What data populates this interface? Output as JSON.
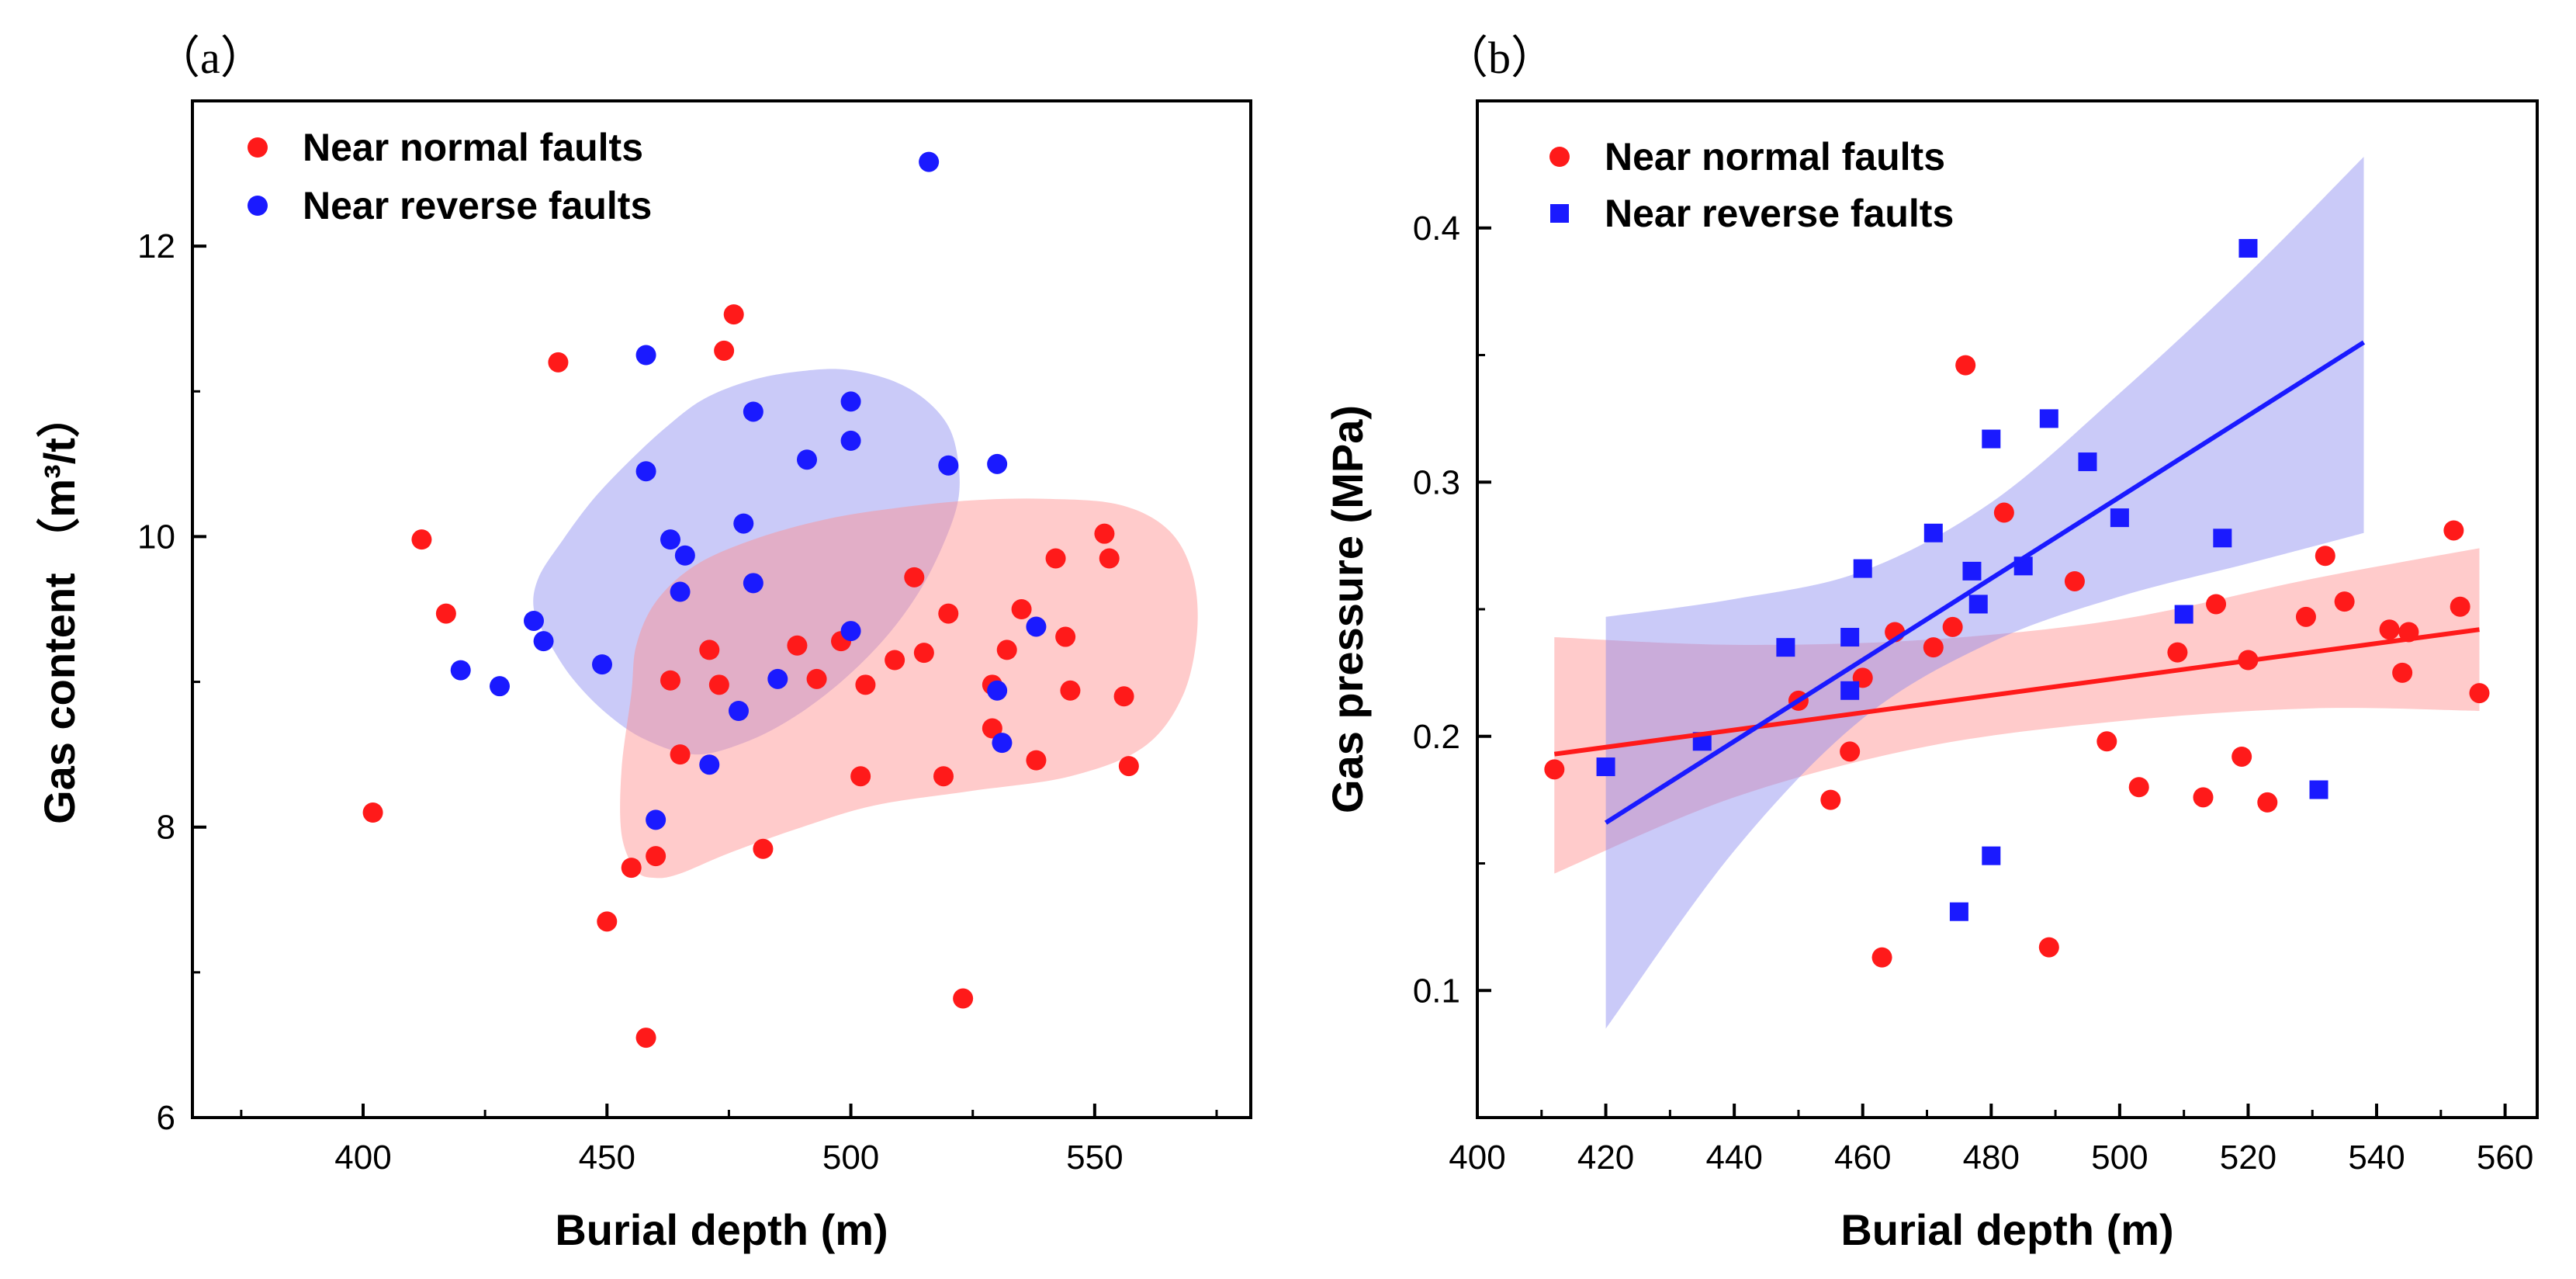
{
  "chart_data": [
    {
      "type": "scatter",
      "panel_label": "（a）",
      "xlabel": "Burial depth (m)",
      "ylabel": "Gas content （m³/t）",
      "xlim": [
        365,
        582
      ],
      "ylim": [
        6,
        13
      ],
      "xticks": [
        400,
        450,
        500,
        550
      ],
      "yticks": [
        6,
        8,
        10,
        12
      ],
      "legend_position": "top-left",
      "series": [
        {
          "name": "Near normal faults",
          "color": "#ff1a1a",
          "marker": "circle",
          "points": [
            [
              402,
              8.1
            ],
            [
              412,
              9.98
            ],
            [
              417,
              9.47
            ],
            [
              440,
              11.2
            ],
            [
              450,
              7.35
            ],
            [
              455,
              7.72
            ],
            [
              458,
              6.55
            ],
            [
              460,
              7.8
            ],
            [
              463,
              9.01
            ],
            [
              465,
              8.5
            ],
            [
              471,
              9.22
            ],
            [
              473,
              8.98
            ],
            [
              474,
              11.28
            ],
            [
              476,
              11.53
            ],
            [
              482,
              7.85
            ],
            [
              489,
              9.25
            ],
            [
              493,
              9.02
            ],
            [
              498,
              9.28
            ],
            [
              502,
              8.35
            ],
            [
              503,
              8.98
            ],
            [
              509,
              9.15
            ],
            [
              513,
              9.72
            ],
            [
              515,
              9.2
            ],
            [
              519,
              8.35
            ],
            [
              520,
              9.47
            ],
            [
              523,
              6.82
            ],
            [
              529,
              8.68
            ],
            [
              529,
              8.98
            ],
            [
              532,
              9.22
            ],
            [
              535,
              9.5
            ],
            [
              538,
              8.46
            ],
            [
              542,
              9.85
            ],
            [
              544,
              9.31
            ],
            [
              545,
              8.94
            ],
            [
              552,
              10.02
            ],
            [
              553,
              9.85
            ],
            [
              556,
              8.9
            ],
            [
              557,
              8.42
            ]
          ]
        },
        {
          "name": "Near reverse faults",
          "color": "#1a1aff",
          "marker": "circle",
          "points": [
            [
              420,
              9.08
            ],
            [
              428,
              8.97
            ],
            [
              435,
              9.42
            ],
            [
              437,
              9.28
            ],
            [
              449,
              9.12
            ],
            [
              458,
              11.25
            ],
            [
              458,
              10.45
            ],
            [
              460,
              8.05
            ],
            [
              463,
              9.98
            ],
            [
              465,
              9.62
            ],
            [
              466,
              9.87
            ],
            [
              471,
              8.43
            ],
            [
              477,
              8.8
            ],
            [
              478,
              10.09
            ],
            [
              480,
              10.86
            ],
            [
              480,
              9.68
            ],
            [
              485,
              9.02
            ],
            [
              491,
              10.53
            ],
            [
              500,
              10.93
            ],
            [
              500,
              10.66
            ],
            [
              500,
              9.35
            ],
            [
              516,
              12.58
            ],
            [
              520,
              10.49
            ],
            [
              530,
              10.5
            ],
            [
              530,
              8.94
            ],
            [
              531,
              8.58
            ],
            [
              538,
              9.38
            ]
          ]
        }
      ],
      "regions": [
        {
          "name": "reverse-fault-envelope",
          "fill": "#8080ee",
          "opacity": 0.42,
          "outline_data": [
            [
              436,
              9.72
            ],
            [
              441,
              9.98
            ],
            [
              447,
              10.25
            ],
            [
              454,
              10.5
            ],
            [
              462,
              10.75
            ],
            [
              470,
              10.95
            ],
            [
              480,
              11.08
            ],
            [
              490,
              11.14
            ],
            [
              499,
              11.15
            ],
            [
              508,
              11.08
            ],
            [
              515,
              10.95
            ],
            [
              520,
              10.76
            ],
            [
              522,
              10.52
            ],
            [
              522,
              10.25
            ],
            [
              519,
              9.95
            ],
            [
              514,
              9.62
            ],
            [
              507,
              9.3
            ],
            [
              498,
              9.0
            ],
            [
              488,
              8.75
            ],
            [
              478,
              8.58
            ],
            [
              468,
              8.5
            ],
            [
              458,
              8.6
            ],
            [
              450,
              8.78
            ],
            [
              443,
              9.02
            ],
            [
              438,
              9.28
            ],
            [
              435,
              9.5
            ]
          ]
        },
        {
          "name": "normal-fault-envelope",
          "fill": "#ff8c8c",
          "opacity": 0.45,
          "outline_data": [
            [
              455,
              8.92
            ],
            [
              453,
              8.4
            ],
            [
              453,
              7.95
            ],
            [
              456,
              7.7
            ],
            [
              460,
              7.65
            ],
            [
              465,
              7.68
            ],
            [
              475,
              7.82
            ],
            [
              490,
              8.0
            ],
            [
              505,
              8.15
            ],
            [
              525,
              8.25
            ],
            [
              545,
              8.35
            ],
            [
              560,
              8.55
            ],
            [
              568,
              8.9
            ],
            [
              571,
              9.35
            ],
            [
              570,
              9.75
            ],
            [
              565,
              10.05
            ],
            [
              555,
              10.22
            ],
            [
              540,
              10.26
            ],
            [
              525,
              10.25
            ],
            [
              510,
              10.2
            ],
            [
              495,
              10.12
            ],
            [
              480,
              9.98
            ],
            [
              468,
              9.8
            ],
            [
              460,
              9.55
            ],
            [
              456,
              9.25
            ]
          ]
        }
      ]
    },
    {
      "type": "scatter",
      "panel_label": "（b）",
      "xlabel": "Burial depth (m)",
      "ylabel": "Gas pressure (MPa)",
      "xlim": [
        400,
        565
      ],
      "ylim": [
        0.05,
        0.45
      ],
      "xticks": [
        400,
        420,
        440,
        460,
        480,
        500,
        520,
        540,
        560
      ],
      "yticks": [
        0.1,
        0.2,
        0.3,
        0.4
      ],
      "ytick_labels": [
        "0.1",
        "0.2",
        "0.3",
        "0.4"
      ],
      "legend_position": "top-left",
      "series": [
        {
          "name": "Near normal faults",
          "color": "#ff1a1a",
          "marker": "circle",
          "points": [
            [
              412,
              0.187
            ],
            [
              450,
              0.214
            ],
            [
              455,
              0.175
            ],
            [
              458,
              0.194
            ],
            [
              460,
              0.223
            ],
            [
              463,
              0.113
            ],
            [
              465,
              0.241
            ],
            [
              471,
              0.235
            ],
            [
              474,
              0.243
            ],
            [
              476,
              0.346
            ],
            [
              482,
              0.288
            ],
            [
              489,
              0.117
            ],
            [
              493,
              0.261
            ],
            [
              498,
              0.198
            ],
            [
              503,
              0.18
            ],
            [
              509,
              0.233
            ],
            [
              513,
              0.176
            ],
            [
              515,
              0.252
            ],
            [
              519,
              0.192
            ],
            [
              520,
              0.23
            ],
            [
              523,
              0.174
            ],
            [
              529,
              0.247
            ],
            [
              532,
              0.271
            ],
            [
              535,
              0.253
            ],
            [
              542,
              0.242
            ],
            [
              544,
              0.225
            ],
            [
              545,
              0.241
            ],
            [
              552,
              0.281
            ],
            [
              553,
              0.251
            ],
            [
              556,
              0.217
            ]
          ]
        },
        {
          "name": "Near reverse faults",
          "color": "#1a1aff",
          "marker": "square",
          "points": [
            [
              420,
              0.188
            ],
            [
              435,
              0.198
            ],
            [
              448,
              0.235
            ],
            [
              458,
              0.218
            ],
            [
              458,
              0.239
            ],
            [
              460,
              0.266
            ],
            [
              471,
              0.28
            ],
            [
              475,
              0.131
            ],
            [
              477,
              0.265
            ],
            [
              478,
              0.252
            ],
            [
              480,
              0.317
            ],
            [
              480,
              0.153
            ],
            [
              485,
              0.267
            ],
            [
              489,
              0.325
            ],
            [
              495,
              0.308
            ],
            [
              500,
              0.286
            ],
            [
              510,
              0.248
            ],
            [
              516,
              0.278
            ],
            [
              520,
              0.392
            ],
            [
              531,
              0.179
            ]
          ]
        }
      ],
      "fits": [
        {
          "series": "Near normal faults",
          "color": "#ff1a1a",
          "line": [
            [
              412,
              0.193
            ],
            [
              556,
              0.242
            ]
          ],
          "band_fill": "#ff8c8c",
          "band_opacity": 0.45,
          "band_upper": [
            [
              412,
              0.239
            ],
            [
              440,
              0.236
            ],
            [
              470,
              0.238
            ],
            [
              500,
              0.246
            ],
            [
              530,
              0.262
            ],
            [
              556,
              0.274
            ]
          ],
          "band_lower": [
            [
              412,
              0.146
            ],
            [
              440,
              0.176
            ],
            [
              470,
              0.196
            ],
            [
              500,
              0.206
            ],
            [
              530,
              0.211
            ],
            [
              556,
              0.21
            ]
          ]
        },
        {
          "series": "Near reverse faults",
          "color": "#1a1aff",
          "line": [
            [
              420,
              0.166
            ],
            [
              538,
              0.355
            ]
          ],
          "band_fill": "#8080ee",
          "band_opacity": 0.42,
          "band_upper": [
            [
              420,
              0.247
            ],
            [
              440,
              0.254
            ],
            [
              460,
              0.265
            ],
            [
              480,
              0.292
            ],
            [
              500,
              0.335
            ],
            [
              520,
              0.382
            ],
            [
              538,
              0.428
            ]
          ],
          "band_lower": [
            [
              420,
              0.085
            ],
            [
              440,
              0.155
            ],
            [
              460,
              0.207
            ],
            [
              480,
              0.237
            ],
            [
              500,
              0.255
            ],
            [
              520,
              0.268
            ],
            [
              538,
              0.28
            ]
          ]
        }
      ]
    }
  ]
}
